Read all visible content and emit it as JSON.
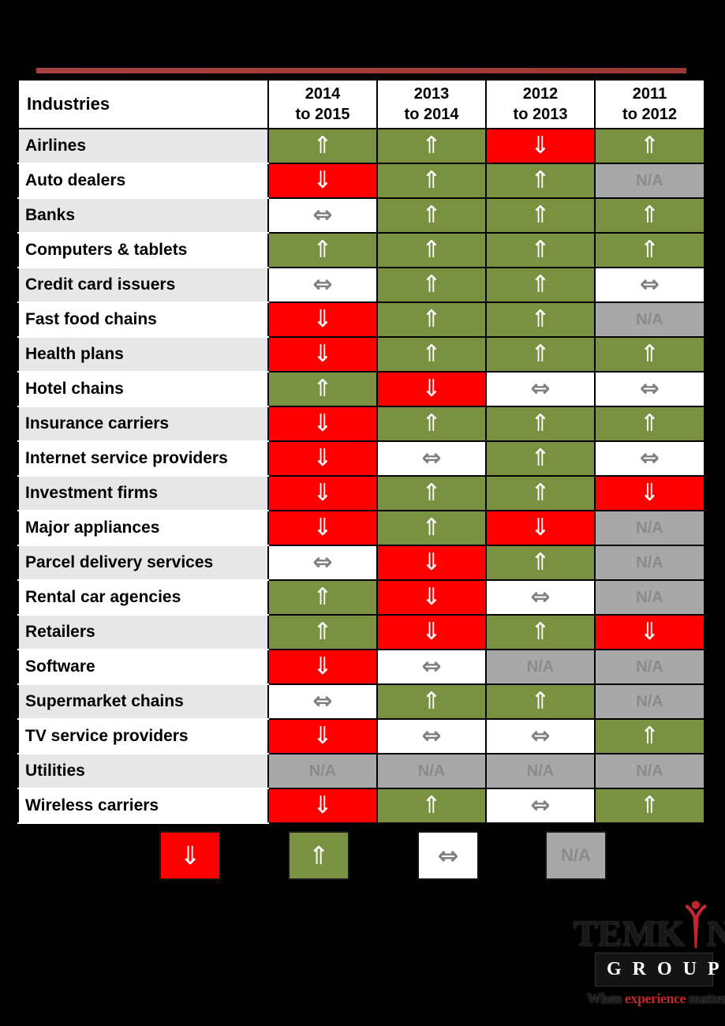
{
  "page": {
    "background": "#000000"
  },
  "accent_line": {
    "color": "#9e3b39"
  },
  "symbols": {
    "up": "⇑",
    "down": "⇓",
    "flat": "⇔",
    "na": "N/A"
  },
  "colors": {
    "up_bg": "#7a9141",
    "down_bg": "#fe0000",
    "flat_bg": "#ffffff",
    "na_bg": "#a8a8a8",
    "flat_arrow": "#7f7f7f",
    "na_text": "#8a8a8a",
    "row_alt_bg": "#e7e7e7",
    "accent_line": "#9e3b39",
    "logo_red": "#c1272d"
  },
  "table": {
    "header": {
      "industries": "Industries",
      "columns": [
        {
          "line1": "2014",
          "line2": "to 2015"
        },
        {
          "line1": "2013",
          "line2": "to 2014"
        },
        {
          "line1": "2012",
          "line2": "to 2013"
        },
        {
          "line1": "2011",
          "line2": "to 2012"
        }
      ]
    }
  },
  "chart_data": {
    "type": "heatmap",
    "title": "",
    "columns": [
      "2014 to 2015",
      "2013 to 2014",
      "2012 to 2013",
      "2011 to 2012"
    ],
    "rows": [
      "Airlines",
      "Auto dealers",
      "Banks",
      "Computers & tablets",
      "Credit card issuers",
      "Fast food chains",
      "Health plans",
      "Hotel chains",
      "Insurance carriers",
      "Internet service providers",
      "Investment firms",
      "Major appliances",
      "Parcel delivery services",
      "Rental car agencies",
      "Retailers",
      "Software",
      "Supermarket chains",
      "TV service providers",
      "Utilities",
      "Wireless carriers"
    ],
    "values": [
      [
        "up",
        "up",
        "down",
        "up"
      ],
      [
        "down",
        "up",
        "up",
        "na"
      ],
      [
        "flat",
        "up",
        "up",
        "up"
      ],
      [
        "up",
        "up",
        "up",
        "up"
      ],
      [
        "flat",
        "up",
        "up",
        "flat"
      ],
      [
        "down",
        "up",
        "up",
        "na"
      ],
      [
        "down",
        "up",
        "up",
        "up"
      ],
      [
        "up",
        "down",
        "flat",
        "flat"
      ],
      [
        "down",
        "up",
        "up",
        "up"
      ],
      [
        "down",
        "flat",
        "up",
        "flat"
      ],
      [
        "down",
        "up",
        "up",
        "down"
      ],
      [
        "down",
        "up",
        "down",
        "na"
      ],
      [
        "flat",
        "down",
        "up",
        "na"
      ],
      [
        "up",
        "down",
        "flat",
        "na"
      ],
      [
        "up",
        "down",
        "up",
        "down"
      ],
      [
        "down",
        "flat",
        "na",
        "na"
      ],
      [
        "flat",
        "up",
        "up",
        "na"
      ],
      [
        "down",
        "flat",
        "flat",
        "up"
      ],
      [
        "na",
        "na",
        "na",
        "na"
      ],
      [
        "down",
        "up",
        "flat",
        "up"
      ]
    ],
    "cell_encoding": {
      "up": "increase (white double up-arrow on green)",
      "down": "decrease (white double down-arrow on red)",
      "flat": "no change (gray double horizontal arrow on white)",
      "na": "N/A (gray text on gray)"
    },
    "legend_position": "bottom"
  },
  "legend": {
    "items": [
      {
        "type": "down"
      },
      {
        "type": "up"
      },
      {
        "type": "flat"
      },
      {
        "type": "na"
      }
    ]
  },
  "logo": {
    "name_left": "TEMK",
    "name_right": "N",
    "group": "GROUP",
    "tagline": {
      "word1": "When",
      "word2": "experience",
      "word3": "matters"
    }
  }
}
